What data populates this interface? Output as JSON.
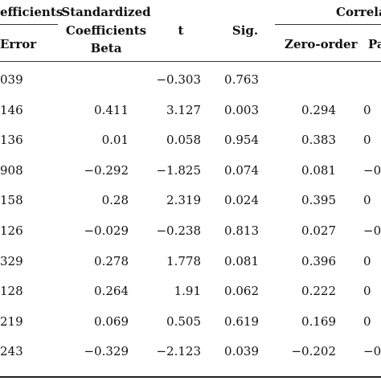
{
  "table": {
    "headers": {
      "coef_group_fragment": "efficients",
      "std_error_fragment": "Error",
      "standardized_line1": "Standardized",
      "standardized_line2": "Coefficients",
      "standardized_line3": "Beta",
      "t": "t",
      "sig": "Sig.",
      "correlations_fragment": "Correla",
      "zero_order": "Zero-order",
      "partial_fragment": "Pa"
    },
    "rows": [
      {
        "std_error": "039",
        "beta": "",
        "t": "−0.303",
        "sig": "0.763",
        "zero_order": "",
        "partial": ""
      },
      {
        "std_error": "146",
        "beta": "0.411",
        "t": "3.127",
        "sig": "0.003",
        "zero_order": "0.294",
        "partial": "0"
      },
      {
        "std_error": "136",
        "beta": "0.01",
        "t": "0.058",
        "sig": "0.954",
        "zero_order": "0.383",
        "partial": "0"
      },
      {
        "std_error": "908",
        "beta": "−0.292",
        "t": "−1.825",
        "sig": "0.074",
        "zero_order": "0.081",
        "partial": "−0"
      },
      {
        "std_error": "158",
        "beta": "0.28",
        "t": "2.319",
        "sig": "0.024",
        "zero_order": "0.395",
        "partial": "0"
      },
      {
        "std_error": "126",
        "beta": "−0.029",
        "t": "−0.238",
        "sig": "0.813",
        "zero_order": "0.027",
        "partial": "−0"
      },
      {
        "std_error": "329",
        "beta": "0.278",
        "t": "1.778",
        "sig": "0.081",
        "zero_order": "0.396",
        "partial": "0"
      },
      {
        "std_error": "128",
        "beta": "0.264",
        "t": "1.91",
        "sig": "0.062",
        "zero_order": "0.222",
        "partial": "0"
      },
      {
        "std_error": "219",
        "beta": "0.069",
        "t": "0.505",
        "sig": "0.619",
        "zero_order": "0.169",
        "partial": "0"
      },
      {
        "std_error": "243",
        "beta": "−0.329",
        "t": "−2.123",
        "sig": "0.039",
        "zero_order": "−0.202",
        "partial": "−0"
      }
    ]
  }
}
